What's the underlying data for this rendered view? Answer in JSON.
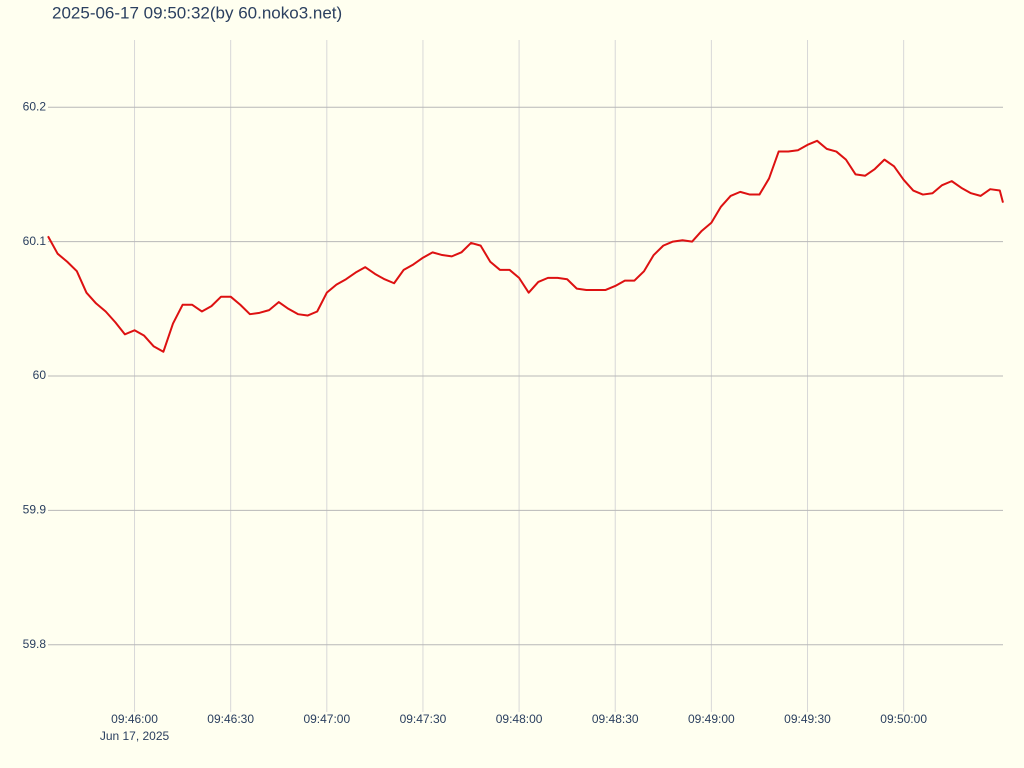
{
  "chart_data": {
    "type": "line",
    "title": "2025-06-17 09:50:32(by 60.noko3.net)",
    "x_date_label": "Jun 17, 2025",
    "xlim": [
      "09:45:33",
      "09:50:31"
    ],
    "xticks": [
      "09:46:00",
      "09:46:30",
      "09:47:00",
      "09:47:30",
      "09:48:00",
      "09:48:30",
      "09:49:00",
      "09:49:30",
      "09:50:00"
    ],
    "ylim": [
      59.75,
      60.25
    ],
    "yticks": [
      59.8,
      59.9,
      60,
      60.1,
      60.2
    ],
    "grid": true,
    "x": [
      "09:45:33",
      "09:45:36",
      "09:45:39",
      "09:45:42",
      "09:45:45",
      "09:45:48",
      "09:45:51",
      "09:45:54",
      "09:45:57",
      "09:46:00",
      "09:46:03",
      "09:46:06",
      "09:46:09",
      "09:46:12",
      "09:46:15",
      "09:46:18",
      "09:46:21",
      "09:46:24",
      "09:46:27",
      "09:46:30",
      "09:46:33",
      "09:46:36",
      "09:46:39",
      "09:46:42",
      "09:46:45",
      "09:46:48",
      "09:46:51",
      "09:46:54",
      "09:46:57",
      "09:47:00",
      "09:47:03",
      "09:47:06",
      "09:47:09",
      "09:47:12",
      "09:47:15",
      "09:47:18",
      "09:47:21",
      "09:47:24",
      "09:47:27",
      "09:47:30",
      "09:47:33",
      "09:47:36",
      "09:47:39",
      "09:47:42",
      "09:47:45",
      "09:47:48",
      "09:47:51",
      "09:47:54",
      "09:47:57",
      "09:48:00",
      "09:48:03",
      "09:48:06",
      "09:48:09",
      "09:48:12",
      "09:48:15",
      "09:48:18",
      "09:48:21",
      "09:48:24",
      "09:48:27",
      "09:48:30",
      "09:48:33",
      "09:48:36",
      "09:48:39",
      "09:48:42",
      "09:48:45",
      "09:48:48",
      "09:48:51",
      "09:48:54",
      "09:48:57",
      "09:49:00",
      "09:49:03",
      "09:49:06",
      "09:49:09",
      "09:49:12",
      "09:49:15",
      "09:49:18",
      "09:49:21",
      "09:49:24",
      "09:49:27",
      "09:49:30",
      "09:49:33",
      "09:49:36",
      "09:49:39",
      "09:49:42",
      "09:49:45",
      "09:49:48",
      "09:49:51",
      "09:49:54",
      "09:49:57",
      "09:50:00",
      "09:50:03",
      "09:50:06",
      "09:50:09",
      "09:50:12",
      "09:50:15",
      "09:50:18",
      "09:50:21",
      "09:50:24",
      "09:50:27",
      "09:50:30",
      "09:50:31"
    ],
    "series": [
      {
        "color": "#dd1111",
        "values": [
          60.104,
          60.091,
          60.085,
          60.078,
          60.062,
          60.054,
          60.048,
          60.04,
          60.031,
          60.034,
          60.03,
          60.022,
          60.018,
          60.039,
          60.053,
          60.053,
          60.048,
          60.052,
          60.059,
          60.059,
          60.053,
          60.046,
          60.047,
          60.049,
          60.055,
          60.05,
          60.046,
          60.045,
          60.048,
          60.062,
          60.068,
          60.072,
          60.077,
          60.081,
          60.076,
          60.072,
          60.069,
          60.079,
          60.083,
          60.088,
          60.092,
          60.09,
          60.089,
          60.092,
          60.099,
          60.097,
          60.085,
          60.079,
          60.079,
          60.073,
          60.062,
          60.07,
          60.073,
          60.073,
          60.072,
          60.065,
          60.064,
          60.064,
          60.064,
          60.067,
          60.071,
          60.071,
          60.078,
          60.09,
          60.097,
          60.1,
          60.101,
          60.1,
          60.108,
          60.114,
          60.126,
          60.134,
          60.137,
          60.135,
          60.135,
          60.147,
          60.167,
          60.167,
          60.168,
          60.172,
          60.175,
          60.169,
          60.167,
          60.161,
          60.15,
          60.149,
          60.154,
          60.161,
          60.156,
          60.146,
          60.138,
          60.135,
          60.136,
          60.142,
          60.145,
          60.14,
          60.136,
          60.134,
          60.139,
          60.138,
          60.129
        ]
      }
    ]
  }
}
